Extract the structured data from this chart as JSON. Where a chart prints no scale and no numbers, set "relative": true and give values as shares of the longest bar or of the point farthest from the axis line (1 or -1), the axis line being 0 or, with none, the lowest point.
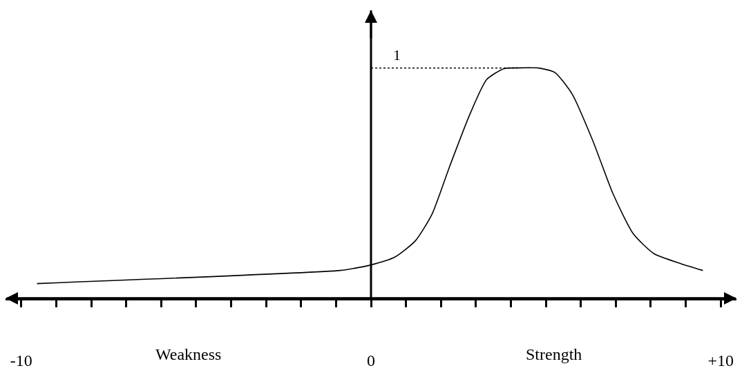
{
  "chart_data": {
    "type": "line",
    "relative": true,
    "x": [
      -9.55,
      -0.88,
      -0.49,
      0,
      0.68,
      1.27,
      1.75,
      2.24,
      2.83,
      3.31,
      3.8,
      4.19,
      4.78,
      5.26,
      5.75,
      6.34,
      6.92,
      7.5,
      8.09,
      8.87,
      9.49
    ],
    "series": [
      {
        "color": "#000000",
        "values": [
          0.064,
          0.121,
          0.13,
          0.145,
          0.179,
          0.25,
          0.367,
          0.569,
          0.8,
          0.95,
          0.997,
          1.0,
          1.0,
          0.98,
          0.887,
          0.685,
          0.454,
          0.28,
          0.194,
          0.15,
          0.121
        ]
      }
    ],
    "xlim": [
      -10.45,
      10.45
    ],
    "xticks": [
      {
        "value": -10,
        "label": "-10"
      },
      {
        "value": -9,
        "label": null
      },
      {
        "value": -8,
        "label": null
      },
      {
        "value": -7,
        "label": null
      },
      {
        "value": -6,
        "label": null
      },
      {
        "value": -5,
        "label": null
      },
      {
        "value": -4,
        "label": null
      },
      {
        "value": -3,
        "label": null
      },
      {
        "value": -2,
        "label": null
      },
      {
        "value": -1,
        "label": null
      },
      0,
      {
        "value": 1,
        "label": null
      },
      {
        "value": 2,
        "label": null
      },
      {
        "value": 3,
        "label": null
      },
      {
        "value": 4,
        "label": null
      },
      {
        "value": 5,
        "label": null
      },
      {
        "value": 6,
        "label": null
      },
      {
        "value": 7,
        "label": null
      },
      {
        "value": 8,
        "label": null
      },
      {
        "value": 9,
        "label": null
      },
      {
        "value": 10,
        "label": "+10"
      }
    ],
    "ref_lines": [
      {
        "axis": "y",
        "value": 1,
        "label": "1",
        "line_style": "dotted",
        "color": "#000000"
      },
      {
        "axis": "x",
        "value": 0,
        "line_style": "solid",
        "color": "#000000"
      }
    ],
    "annotations": [
      "Weakness",
      "Strength"
    ],
    "legend": false,
    "marker": "none",
    "line_style": "solid"
  }
}
